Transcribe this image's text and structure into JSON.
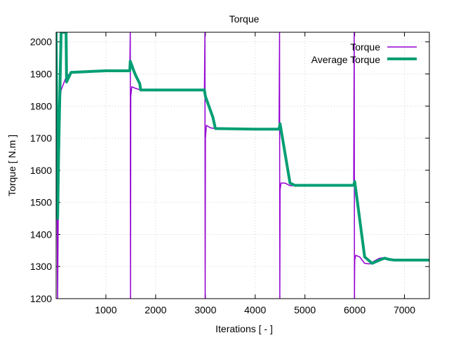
{
  "chart_data": {
    "type": "line",
    "title": "Torque",
    "xlabel": "Iterations [ - ]",
    "ylabel": "Torque [ N.m ]",
    "xlim": [
      0,
      7500
    ],
    "ylim": [
      1200,
      2030
    ],
    "x_ticks": [
      1000,
      2000,
      3000,
      4000,
      5000,
      6000,
      7000
    ],
    "y_ticks": [
      1200,
      1300,
      1400,
      1500,
      1600,
      1700,
      1800,
      1900,
      2000
    ],
    "grid": true,
    "legend_position": "top-right",
    "series": [
      {
        "name": "Torque",
        "color": "#9400d3",
        "line_width": "thin",
        "points": [
          [
            0,
            2030
          ],
          [
            30,
            1200
          ],
          [
            50,
            1620
          ],
          [
            70,
            1800
          ],
          [
            100,
            1850
          ],
          [
            150,
            1870
          ],
          [
            200,
            1890
          ],
          [
            300,
            1905
          ],
          [
            500,
            1908
          ],
          [
            1000,
            1910
          ],
          [
            1480,
            1910
          ],
          [
            1490,
            2030
          ],
          [
            1495,
            1200
          ],
          [
            1500,
            1830
          ],
          [
            1520,
            1860
          ],
          [
            1600,
            1855
          ],
          [
            1700,
            1850
          ],
          [
            2000,
            1850
          ],
          [
            2980,
            1850
          ],
          [
            2990,
            2030
          ],
          [
            2995,
            1200
          ],
          [
            3000,
            1700
          ],
          [
            3020,
            1740
          ],
          [
            3100,
            1732
          ],
          [
            3300,
            1728
          ],
          [
            4000,
            1728
          ],
          [
            4480,
            1728
          ],
          [
            4490,
            2030
          ],
          [
            4495,
            1200
          ],
          [
            4500,
            1540
          ],
          [
            4520,
            1560
          ],
          [
            4600,
            1560
          ],
          [
            4700,
            1552
          ],
          [
            5000,
            1553
          ],
          [
            5980,
            1553
          ],
          [
            5990,
            2030
          ],
          [
            5995,
            1200
          ],
          [
            6000,
            1320
          ],
          [
            6020,
            1335
          ],
          [
            6100,
            1330
          ],
          [
            6200,
            1310
          ],
          [
            6300,
            1308
          ],
          [
            6400,
            1318
          ],
          [
            6500,
            1326
          ],
          [
            6600,
            1328
          ],
          [
            6700,
            1322
          ],
          [
            6800,
            1320
          ],
          [
            7500,
            1320
          ]
        ]
      },
      {
        "name": "Average Torque",
        "color": "#009e73",
        "line_width": "thick",
        "points": [
          [
            0,
            2030
          ],
          [
            30,
            1450
          ],
          [
            50,
            1650
          ],
          [
            100,
            2030
          ],
          [
            200,
            2030
          ],
          [
            210,
            1875
          ],
          [
            300,
            1905
          ],
          [
            1000,
            1910
          ],
          [
            1480,
            1910
          ],
          [
            1490,
            1940
          ],
          [
            1560,
            1910
          ],
          [
            1600,
            1895
          ],
          [
            1680,
            1870
          ],
          [
            1700,
            1850
          ],
          [
            2000,
            1850
          ],
          [
            2980,
            1850
          ],
          [
            3000,
            1830
          ],
          [
            3150,
            1765
          ],
          [
            3200,
            1730
          ],
          [
            4000,
            1728
          ],
          [
            4480,
            1728
          ],
          [
            4500,
            1745
          ],
          [
            4700,
            1560
          ],
          [
            4800,
            1553
          ],
          [
            5980,
            1553
          ],
          [
            6000,
            1565
          ],
          [
            6200,
            1330
          ],
          [
            6350,
            1310
          ],
          [
            6500,
            1320
          ],
          [
            6600,
            1326
          ],
          [
            6700,
            1322
          ],
          [
            6800,
            1320
          ],
          [
            7500,
            1320
          ]
        ]
      }
    ]
  }
}
